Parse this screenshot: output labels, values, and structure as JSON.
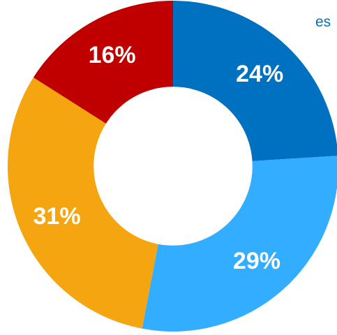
{
  "legend": {
    "partial_text": "es"
  },
  "chart_data": {
    "type": "pie",
    "variant": "donut",
    "title": "",
    "slices": [
      {
        "label": "24%",
        "value": 24,
        "color": "#0070c0"
      },
      {
        "label": "29%",
        "value": 29,
        "color": "#33adff"
      },
      {
        "label": "31%",
        "value": 31,
        "color": "#f5a50f"
      },
      {
        "label": "16%",
        "value": 16,
        "color": "#c00000"
      }
    ],
    "start_angle_deg": 0,
    "direction": "clockwise",
    "hole_ratio": 0.48,
    "legend_position": "top-right"
  }
}
